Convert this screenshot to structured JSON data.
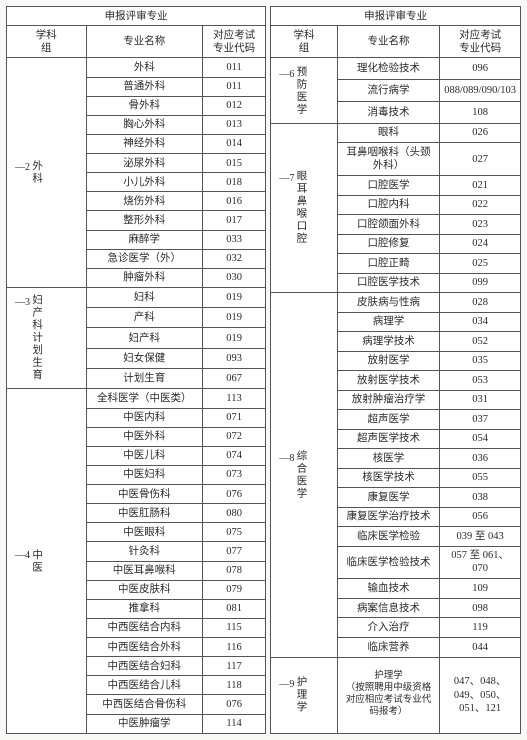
{
  "headers": {
    "super": "申报评审专业",
    "group": "学科\n组",
    "name": "专业名称",
    "code": "对应考试\n专业代码"
  },
  "left": {
    "groups": [
      {
        "label": "外科",
        "sub": "—2",
        "rows": [
          {
            "name": "外科",
            "code": "011"
          },
          {
            "name": "普通外科",
            "code": "011"
          },
          {
            "name": "骨外科",
            "code": "012"
          },
          {
            "name": "胸心外科",
            "code": "013"
          },
          {
            "name": "神经外科",
            "code": "014"
          },
          {
            "name": "泌尿外科",
            "code": "015"
          },
          {
            "name": "小儿外科",
            "code": "018"
          },
          {
            "name": "烧伤外科",
            "code": "016"
          },
          {
            "name": "整形外科",
            "code": "017"
          },
          {
            "name": "麻醉学",
            "code": "033"
          },
          {
            "name": "急诊医学（外）",
            "code": "032"
          },
          {
            "name": "肿瘤外科",
            "code": "030"
          }
        ]
      },
      {
        "label": "妇产科计划生育",
        "sub": "—3",
        "rows": [
          {
            "name": "妇科",
            "code": "019"
          },
          {
            "name": "产科",
            "code": "019"
          },
          {
            "name": "妇产科",
            "code": "019"
          },
          {
            "name": "妇女保健",
            "code": "093"
          },
          {
            "name": "计划生育",
            "code": "067"
          }
        ]
      },
      {
        "label": "中医",
        "sub": "—4",
        "rows": [
          {
            "name": "全科医学（中医类）",
            "code": "113"
          },
          {
            "name": "中医内科",
            "code": "071"
          },
          {
            "name": "中医外科",
            "code": "072"
          },
          {
            "name": "中医儿科",
            "code": "074"
          },
          {
            "name": "中医妇科",
            "code": "073"
          },
          {
            "name": "中医骨伤科",
            "code": "076"
          },
          {
            "name": "中医肛肠科",
            "code": "080"
          },
          {
            "name": "中医眼科",
            "code": "075"
          },
          {
            "name": "针灸科",
            "code": "077"
          },
          {
            "name": "中医耳鼻喉科",
            "code": "078"
          },
          {
            "name": "中医皮肤科",
            "code": "079"
          },
          {
            "name": "推拿科",
            "code": "081"
          },
          {
            "name": "中西医结合内科",
            "code": "115"
          },
          {
            "name": "中西医结合外科",
            "code": "116"
          },
          {
            "name": "中西医结合妇科",
            "code": "117"
          },
          {
            "name": "中西医结合儿科",
            "code": "118"
          },
          {
            "name": "中西医结合骨伤科",
            "code": "076"
          },
          {
            "name": "中医肿瘤学",
            "code": "114"
          }
        ]
      }
    ]
  },
  "right": {
    "groups": [
      {
        "label": "预防医学",
        "sub": "—6",
        "rows": [
          {
            "name": "理化检验技术",
            "code": "096"
          },
          {
            "name": "流行病学",
            "code": "088/089/090/103"
          },
          {
            "name": "消毒技术",
            "code": "108"
          }
        ]
      },
      {
        "label": "眼耳鼻喉口腔",
        "sub": "—7",
        "rows": [
          {
            "name": "眼科",
            "code": "026"
          },
          {
            "name": "耳鼻咽喉科（头颈外科）",
            "code": "027"
          },
          {
            "name": "口腔医学",
            "code": "021"
          },
          {
            "name": "口腔内科",
            "code": "022"
          },
          {
            "name": "口腔颌面外科",
            "code": "023"
          },
          {
            "name": "口腔修复",
            "code": "024"
          },
          {
            "name": "口腔正畸",
            "code": "025"
          },
          {
            "name": "口腔医学技术",
            "code": "099"
          }
        ]
      },
      {
        "label": "综合医学",
        "sub": "—8",
        "rows": [
          {
            "name": "皮肤病与性病",
            "code": "028"
          },
          {
            "name": "病理学",
            "code": "034"
          },
          {
            "name": "病理学技术",
            "code": "052"
          },
          {
            "name": "放射医学",
            "code": "035"
          },
          {
            "name": "放射医学技术",
            "code": "053"
          },
          {
            "name": "放射肿瘤治疗学",
            "code": "031"
          },
          {
            "name": "超声医学",
            "code": "037"
          },
          {
            "name": "超声医学技术",
            "code": "054"
          },
          {
            "name": "核医学",
            "code": "036"
          },
          {
            "name": "核医学技术",
            "code": "055"
          },
          {
            "name": "康复医学",
            "code": "038"
          },
          {
            "name": "康复医学治疗技术",
            "code": "056"
          },
          {
            "name": "临床医学检验",
            "code": "039 至 043"
          },
          {
            "name": "临床医学检验技术",
            "code": "057 至 061、070"
          },
          {
            "name": "输血技术",
            "code": "109"
          },
          {
            "name": "病案信息技术",
            "code": "098"
          },
          {
            "name": "介入治疗",
            "code": "119"
          },
          {
            "name": "临床营养",
            "code": "044"
          }
        ]
      },
      {
        "label": "护理学",
        "sub": "—9",
        "rows": [
          {
            "name": "护理学\n（按照聘用中级资格对应相应考试专业代码报考）",
            "code": "047、048、049、050、051、121"
          }
        ],
        "tall": true
      }
    ]
  }
}
